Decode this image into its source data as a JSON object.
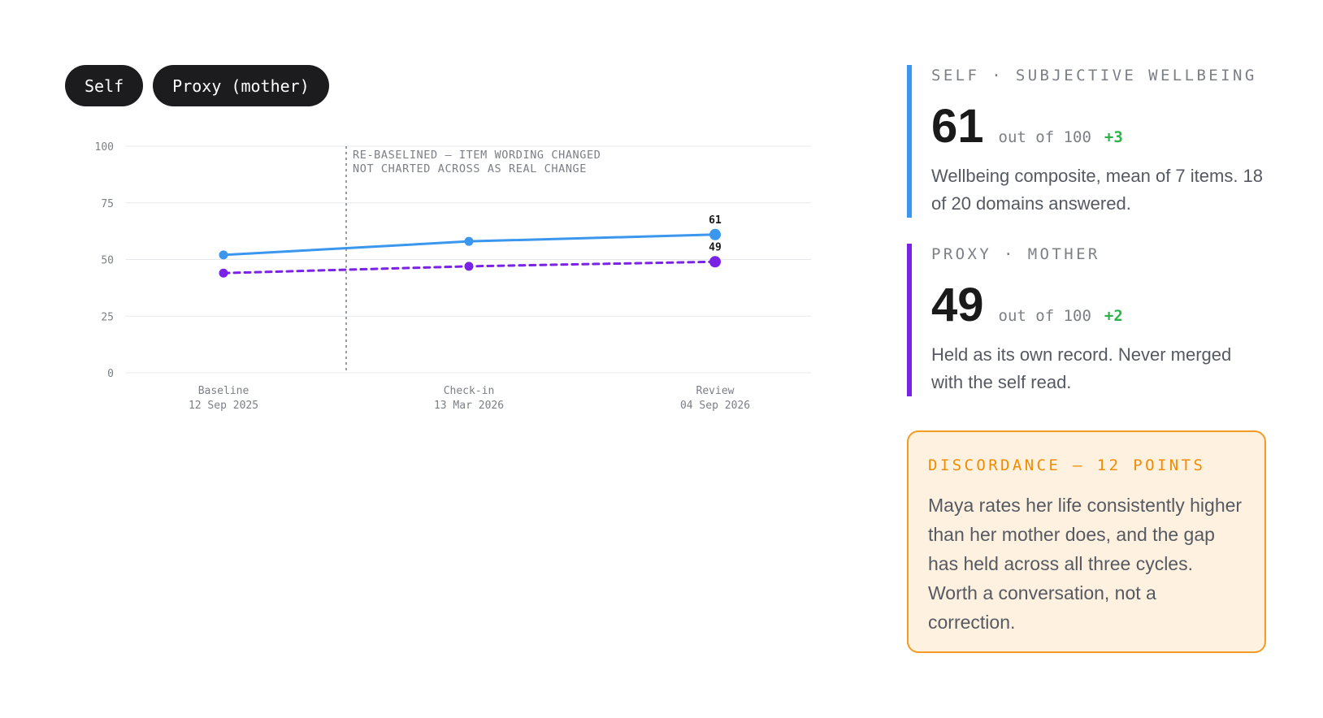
{
  "toggles": {
    "self_label": "Self",
    "proxy_label": "Proxy (mother)"
  },
  "self_card": {
    "label": "SELF · SUBJECTIVE WELLBEING",
    "value": "61",
    "out_of": "out of 100",
    "delta": "+3",
    "description": "Wellbeing composite, mean of 7 items. 18 of 20 domains answered."
  },
  "proxy_card": {
    "label": "PROXY · MOTHER",
    "value": "49",
    "out_of": "out of 100",
    "delta": "+2",
    "description": "Held as its own record. Never merged with the self read."
  },
  "callout": {
    "title": "DISCORDANCE — 12 POINTS",
    "text": "Maya rates her life consistently higher than her mother does, and the gap has held across all three cycles. Worth a conversation, not a correction."
  },
  "colors": {
    "self": "#3b96ee",
    "proxy": "#7a22e6",
    "accent": "#f59a23",
    "positive": "#2bb34a"
  },
  "chart_data": {
    "type": "line",
    "categories": [
      {
        "label": "Baseline",
        "date": "12 Sep 2025"
      },
      {
        "label": "Check-in",
        "date": "13 Mar 2026"
      },
      {
        "label": "Review",
        "date": "04 Sep 2026"
      }
    ],
    "series": [
      {
        "key": "self",
        "values": [
          52,
          58,
          61
        ],
        "style": "solid",
        "color": "#3b96ee"
      },
      {
        "key": "proxy",
        "values": [
          44,
          47,
          49
        ],
        "style": "dashed",
        "color": "#7a22e6"
      }
    ],
    "ylim": [
      0,
      100
    ],
    "yticks": [
      0,
      25,
      50,
      75,
      100
    ],
    "grid": true,
    "end_labels": [
      "61",
      "49"
    ],
    "annotation": {
      "line1": "RE-BASELINED — ITEM WORDING CHANGED",
      "line2": "NOT CHARTED ACROSS AS REAL CHANGE",
      "x_position": 0.5
    }
  }
}
